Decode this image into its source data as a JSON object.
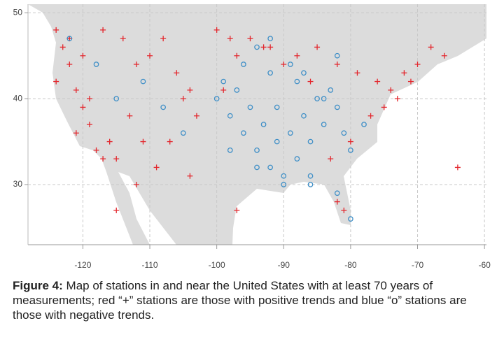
{
  "chart_data": {
    "type": "scatter",
    "xlim": [
      -128.2,
      -59.7
    ],
    "ylim": [
      23,
      51
    ],
    "xticks": [
      -120,
      -110,
      -100,
      -90,
      -80,
      -70,
      -60
    ],
    "yticks": [
      30,
      40,
      50
    ],
    "grid": true,
    "series": [
      {
        "color": "#e3262c",
        "marker": "+",
        "x": [
          -124,
          -123,
          -122,
          -121,
          -120,
          -119,
          -118,
          -117,
          -116,
          -122,
          -120,
          -117,
          -114,
          -112,
          -110,
          -108,
          -106,
          -104,
          -113,
          -111,
          -105,
          -103,
          -124,
          -121,
          -119,
          -115,
          -109,
          -107,
          -100,
          -98,
          -95,
          -92,
          -88,
          -85,
          -82,
          -79,
          -76,
          -74,
          -72,
          -70,
          -68,
          -75,
          -77,
          -73,
          -71,
          -80,
          -83,
          -86,
          -90,
          -93,
          -97,
          -99,
          -81,
          -82,
          -97,
          -104,
          -112,
          -115,
          -64,
          -66
        ],
        "values": [
          48,
          46,
          44,
          41,
          39,
          37,
          34,
          33,
          35,
          47,
          45,
          48,
          47,
          44,
          45,
          47,
          43,
          41,
          38,
          35,
          40,
          38,
          42,
          36,
          40,
          33,
          32,
          35,
          48,
          47,
          47,
          46,
          45,
          46,
          44,
          43,
          42,
          41,
          43,
          44,
          46,
          39,
          38,
          40,
          42,
          35,
          33,
          42,
          44,
          46,
          45,
          41,
          27,
          28,
          27,
          31,
          30,
          27,
          32,
          45
        ]
      },
      {
        "color": "#3f8fc7",
        "marker": "o",
        "x": [
          -100,
          -98,
          -96,
          -94,
          -92,
          -90,
          -88,
          -86,
          -84,
          -82,
          -99,
          -97,
          -95,
          -93,
          -91,
          -89,
          -87,
          -85,
          -83,
          -81,
          -98,
          -94,
          -90,
          -86,
          -82,
          -96,
          -92,
          -88,
          -84,
          -80,
          -122,
          -118,
          -115,
          -111,
          -108,
          -105,
          -89,
          -87,
          -82,
          -78,
          -92,
          -94,
          -80,
          -86,
          -91
        ],
        "values": [
          40,
          38,
          36,
          34,
          32,
          30,
          33,
          35,
          37,
          39,
          42,
          41,
          39,
          37,
          35,
          36,
          38,
          40,
          41,
          36,
          34,
          32,
          31,
          30,
          29,
          44,
          43,
          42,
          40,
          34,
          47,
          44,
          40,
          42,
          39,
          36,
          44,
          43,
          45,
          37,
          47,
          46,
          26,
          31,
          39
        ]
      }
    ]
  },
  "caption": {
    "label": "Figure 4:",
    "text": "Map of stations in and near the United States with at least 70 years of measurements; red “+” stations are those with positive trends and blue “o” stations are those with negative trends."
  }
}
